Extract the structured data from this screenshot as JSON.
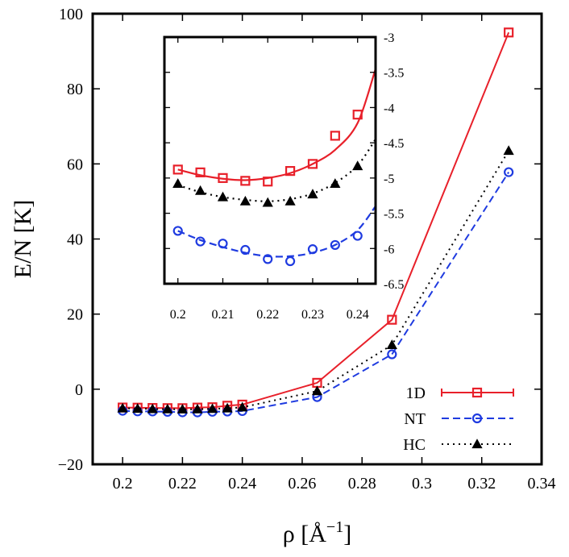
{
  "chart_data": {
    "type": "line",
    "xlabel": "ρ [Å",
    "xlabel_sup": "−1",
    "xlabel_close": "]",
    "ylabel": "E/N [K]",
    "xlim": [
      0.19,
      0.34
    ],
    "ylim": [
      -20,
      100
    ],
    "xticks": [
      0.2,
      0.22,
      0.24,
      0.26,
      0.28,
      0.3,
      0.32,
      0.34
    ],
    "xtick_labels": [
      "0.2",
      "0.22",
      "0.24",
      "0.26",
      "0.28",
      "0.3",
      "0.32",
      "0.34"
    ],
    "yticks": [
      -20,
      0,
      20,
      40,
      60,
      80,
      100
    ],
    "ytick_labels": [
      "−20",
      "0",
      "20",
      "40",
      "60",
      "80",
      "100"
    ],
    "grid": false,
    "legend_position": "bottom-right",
    "series": [
      {
        "name": "1D",
        "color": "#e8202a",
        "marker": "square",
        "line": "solid",
        "x": [
          0.2,
          0.205,
          0.21,
          0.215,
          0.22,
          0.225,
          0.23,
          0.235,
          0.24,
          0.265,
          0.29,
          0.329
        ],
        "y": [
          -4.88,
          -4.92,
          -5.0,
          -5.04,
          -5.05,
          -4.9,
          -4.8,
          -4.4,
          -4.1,
          1.7,
          18.5,
          95.0
        ]
      },
      {
        "name": "NT",
        "color": "#1f3be0",
        "marker": "circle",
        "line": "dashed",
        "x": [
          0.2,
          0.205,
          0.21,
          0.215,
          0.22,
          0.225,
          0.23,
          0.235,
          0.24,
          0.265,
          0.29,
          0.329
        ],
        "y": [
          -5.75,
          -5.9,
          -5.93,
          -6.02,
          -6.15,
          -6.18,
          -6.01,
          -5.95,
          -5.82,
          -2.1,
          9.3,
          57.8
        ]
      },
      {
        "name": "HC",
        "color": "#000000",
        "marker": "triangle",
        "line": "dotted",
        "x": [
          0.2,
          0.205,
          0.21,
          0.215,
          0.22,
          0.225,
          0.23,
          0.235,
          0.24,
          0.265,
          0.29,
          0.329
        ],
        "y": [
          -5.08,
          -5.18,
          -5.27,
          -5.33,
          -5.35,
          -5.33,
          -5.23,
          -5.08,
          -4.83,
          -0.5,
          11.8,
          63.5
        ]
      }
    ],
    "inset": {
      "xlim": [
        0.197,
        0.244
      ],
      "ylim": [
        -6.5,
        -3
      ],
      "xticks": [
        0.2,
        0.21,
        0.22,
        0.23,
        0.24
      ],
      "xtick_labels": [
        "0.2",
        "0.21",
        "0.22",
        "0.23",
        "0.24"
      ],
      "yticks": [
        -6.5,
        -6,
        -5.5,
        -5,
        -4.5,
        -4,
        -3.5,
        -3
      ],
      "ytick_labels": [
        "-6.5",
        "-6",
        "-5.5",
        "-5",
        "-4.5",
        "-4",
        "-3.5",
        "-3"
      ],
      "series": [
        {
          "name": "1D",
          "color": "#e8202a",
          "marker": "square",
          "x": [
            0.2,
            0.205,
            0.21,
            0.215,
            0.22,
            0.225,
            0.23,
            0.235,
            0.24
          ],
          "y": [
            -4.88,
            -4.92,
            -5.0,
            -5.04,
            -5.05,
            -4.9,
            -4.8,
            -4.4,
            -4.1
          ],
          "fit_x": [
            0.2,
            0.205,
            0.21,
            0.215,
            0.22,
            0.225,
            0.23,
            0.235,
            0.24,
            0.244
          ],
          "fit_y": [
            -4.88,
            -4.96,
            -5.01,
            -5.03,
            -5.0,
            -4.93,
            -4.8,
            -4.6,
            -4.22,
            -3.45
          ]
        },
        {
          "name": "NT",
          "color": "#1f3be0",
          "marker": "circle",
          "x": [
            0.2,
            0.205,
            0.21,
            0.215,
            0.22,
            0.225,
            0.23,
            0.235,
            0.24
          ],
          "y": [
            -5.75,
            -5.9,
            -5.93,
            -6.02,
            -6.15,
            -6.18,
            -6.01,
            -5.95,
            -5.82
          ],
          "fit_x": [
            0.2,
            0.205,
            0.21,
            0.215,
            0.22,
            0.225,
            0.23,
            0.235,
            0.24,
            0.244
          ],
          "fit_y": [
            -5.75,
            -5.88,
            -5.98,
            -6.06,
            -6.11,
            -6.11,
            -6.06,
            -5.95,
            -5.74,
            -5.4
          ]
        },
        {
          "name": "HC",
          "color": "#000000",
          "marker": "triangle",
          "x": [
            0.2,
            0.205,
            0.21,
            0.215,
            0.22,
            0.225,
            0.23,
            0.235,
            0.24
          ],
          "y": [
            -5.08,
            -5.18,
            -5.27,
            -5.33,
            -5.35,
            -5.33,
            -5.23,
            -5.08,
            -4.83
          ],
          "fit_x": [
            0.2,
            0.205,
            0.21,
            0.215,
            0.22,
            0.225,
            0.23,
            0.235,
            0.24,
            0.244
          ],
          "fit_y": [
            -5.1,
            -5.2,
            -5.27,
            -5.31,
            -5.33,
            -5.3,
            -5.22,
            -5.07,
            -4.82,
            -4.45
          ]
        }
      ]
    }
  }
}
